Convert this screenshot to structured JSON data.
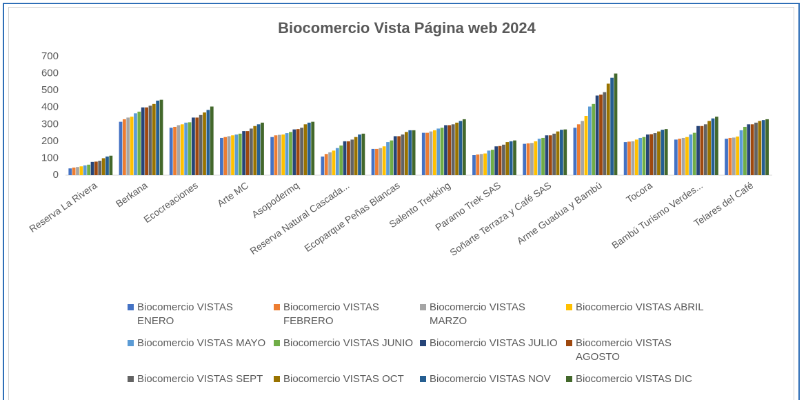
{
  "chart_data": {
    "type": "bar",
    "title": "Biocomercio Vista Página web 2024",
    "categories": [
      "Reserva La Rivera",
      "Berkana",
      "Ecocreaciones",
      "Arte MC",
      "Asopodermq",
      "Reserva Natural Cascada...",
      "Ecoparque Peñas Blancas",
      "Salento Trekking",
      "Paramo Trek SAS",
      "Soñarte Terraza y Café SAS",
      "Arme Guadua y Bambú",
      "Tocora",
      "Bambú Turismo Verdes...",
      "Telares del Café"
    ],
    "series": [
      {
        "name": "Biocomercio VISTAS ENERO",
        "color": "#4472c4",
        "values": [
          40,
          315,
          280,
          220,
          225,
          110,
          155,
          250,
          118,
          185,
          280,
          195,
          210,
          215
        ]
      },
      {
        "name": "Biocomercio VISTAS FEBRERO",
        "color": "#ed7d31",
        "values": [
          45,
          330,
          285,
          225,
          235,
          125,
          155,
          250,
          122,
          188,
          300,
          198,
          215,
          220
        ]
      },
      {
        "name": "Biocomercio VISTAS MARZO",
        "color": "#a5a5a5",
        "values": [
          48,
          340,
          295,
          230,
          238,
          135,
          160,
          258,
          125,
          190,
          320,
          200,
          220,
          222
        ]
      },
      {
        "name": "Biocomercio VISTAS ABRIL",
        "color": "#ffc000",
        "values": [
          52,
          345,
          300,
          235,
          240,
          145,
          170,
          265,
          128,
          200,
          350,
          210,
          225,
          228
        ]
      },
      {
        "name": "Biocomercio VISTAS MAYO",
        "color": "#5b9bd5",
        "values": [
          58,
          365,
          310,
          240,
          248,
          160,
          195,
          275,
          145,
          215,
          405,
          220,
          240,
          265
        ]
      },
      {
        "name": "Biocomercio VISTAS JUNIO",
        "color": "#70ad47",
        "values": [
          62,
          375,
          312,
          245,
          255,
          175,
          205,
          280,
          150,
          220,
          420,
          225,
          250,
          285
        ]
      },
      {
        "name": "Biocomercio VISTAS JULIO",
        "color": "#264478",
        "values": [
          78,
          400,
          340,
          260,
          270,
          200,
          230,
          295,
          170,
          235,
          470,
          240,
          290,
          300
        ]
      },
      {
        "name": "Biocomercio VISTAS AGOSTO",
        "color": "#9e480e",
        "values": [
          80,
          400,
          340,
          260,
          272,
          200,
          230,
          295,
          172,
          235,
          475,
          242,
          290,
          300
        ]
      },
      {
        "name": "Biocomercio VISTAS SEPT",
        "color": "#636363",
        "values": [
          85,
          410,
          355,
          275,
          280,
          210,
          240,
          300,
          180,
          245,
          490,
          248,
          300,
          310
        ]
      },
      {
        "name": "Biocomercio VISTAS OCT",
        "color": "#997300",
        "values": [
          100,
          420,
          370,
          290,
          300,
          225,
          255,
          310,
          195,
          258,
          540,
          258,
          320,
          320
        ]
      },
      {
        "name": "Biocomercio VISTAS NOV",
        "color": "#255e91",
        "values": [
          110,
          440,
          385,
          300,
          310,
          240,
          265,
          320,
          200,
          268,
          575,
          268,
          335,
          325
        ]
      },
      {
        "name": "Biocomercio VISTAS DIC",
        "color": "#43682b",
        "values": [
          115,
          445,
          405,
          310,
          315,
          245,
          265,
          330,
          205,
          270,
          600,
          272,
          345,
          330
        ]
      }
    ],
    "ylim": [
      0,
      700
    ],
    "yticks": [
      0,
      100,
      200,
      300,
      400,
      500,
      600,
      700
    ],
    "grid": false
  }
}
